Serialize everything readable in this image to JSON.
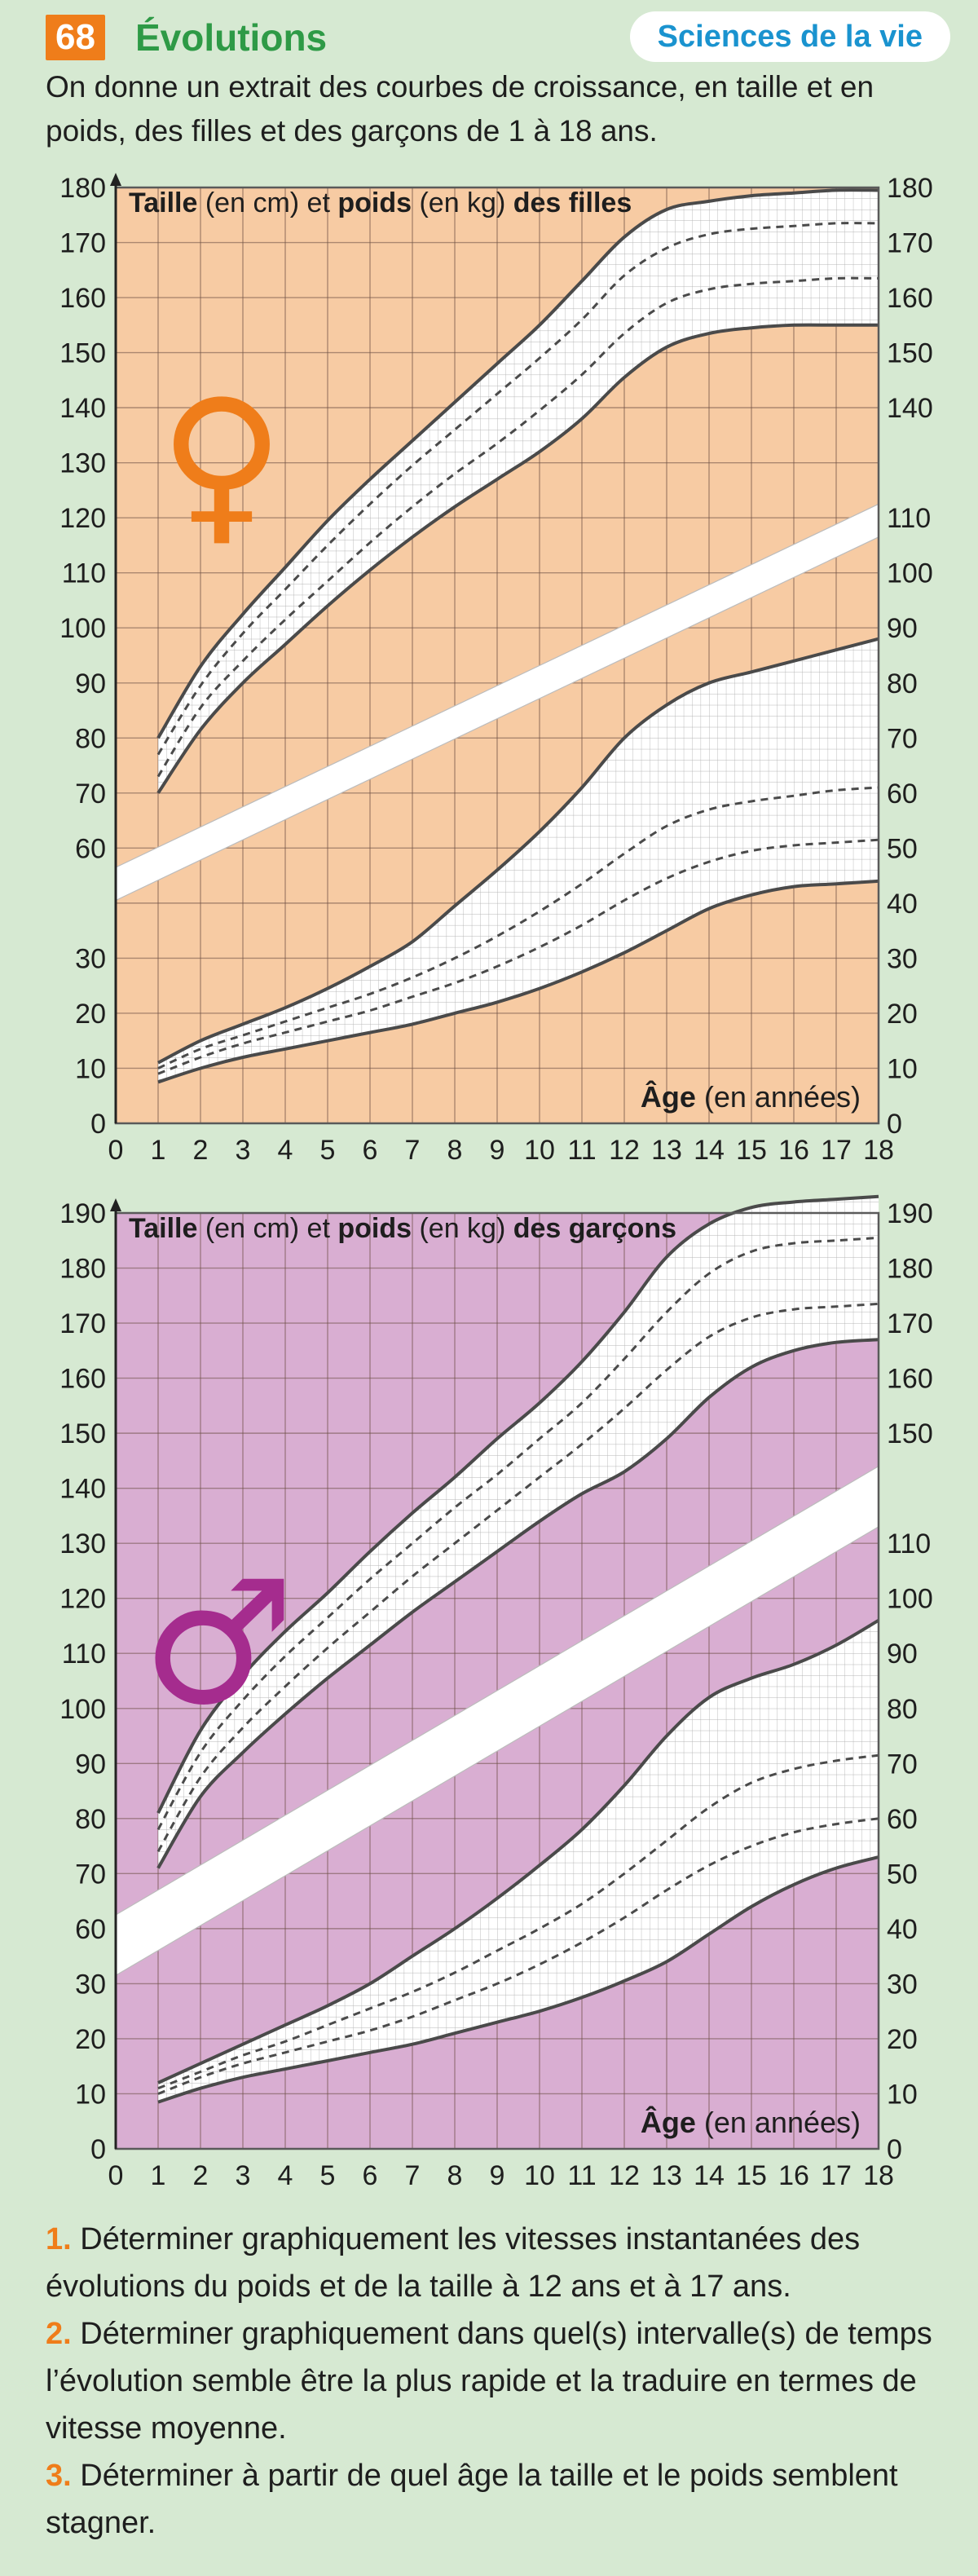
{
  "header": {
    "number": "68",
    "title": "Évolutions",
    "subject": "Sciences de la vie",
    "intro": "On donne un extrait des courbes de croissance, en taille et en poids, des filles et des garçons de 1 à 18 ans."
  },
  "colors": {
    "number_bg": "#ef7d1a",
    "title": "#2e9a46",
    "subject": "#1a93cf",
    "girls_bg": "#f7cba3",
    "boys_bg": "#d9aed2",
    "girls_symbol": "#ef7d1a",
    "boys_symbol": "#a52c8e",
    "page_bg": "#d6e9d2"
  },
  "chart_data": [
    {
      "type": "line",
      "title_parts": [
        "Taille",
        " (en cm) et ",
        "poids",
        " (en kg) ",
        "des filles"
      ],
      "xlabel_parts": [
        "Âge",
        " (en années)"
      ],
      "symbol": "♀",
      "x_ticks": [
        "0",
        "1",
        "2",
        "3",
        "4",
        "5",
        "6",
        "7",
        "8",
        "9",
        "10",
        "11",
        "12",
        "13",
        "14",
        "15",
        "16",
        "17",
        "18"
      ],
      "left_ticks": [
        [
          "0",
          0
        ],
        [
          "10",
          10
        ],
        [
          "20",
          20
        ],
        [
          "30",
          30
        ],
        [
          "60",
          50
        ],
        [
          "70",
          60
        ],
        [
          "80",
          70
        ],
        [
          "90",
          80
        ],
        [
          "100",
          90
        ],
        [
          "110",
          100
        ],
        [
          "120",
          110
        ],
        [
          "130",
          120
        ],
        [
          "140",
          130
        ],
        [
          "150",
          140
        ],
        [
          "160",
          150
        ],
        [
          "170",
          160
        ],
        [
          "180",
          170
        ]
      ],
      "right_ticks": [
        [
          "0",
          0
        ],
        [
          "10",
          10
        ],
        [
          "20",
          20
        ],
        [
          "30",
          30
        ],
        [
          "40",
          40
        ],
        [
          "50",
          50
        ],
        [
          "60",
          60
        ],
        [
          "70",
          70
        ],
        [
          "80",
          80
        ],
        [
          "90",
          90
        ],
        [
          "100",
          100
        ],
        [
          "110",
          110
        ],
        [
          "140",
          130
        ],
        [
          "150",
          140
        ],
        [
          "160",
          150
        ],
        [
          "170",
          160
        ],
        [
          "180",
          170
        ]
      ],
      "xlim": [
        0,
        18
      ],
      "ylim": [
        0,
        170
      ],
      "break_band": {
        "left": [
          [
            0,
            40.5,
            46.5
          ],
          [
            18,
            106.5,
            112.5
          ]
        ]
      },
      "height_series_cm": [
        {
          "style": "solid",
          "x": [
            1,
            2,
            3,
            4,
            5,
            6,
            7,
            8,
            9,
            10,
            11,
            12,
            13,
            14,
            15,
            16,
            17,
            18
          ],
          "y": [
            80,
            93,
            102.5,
            111,
            119.5,
            127,
            134,
            141,
            148,
            155,
            163,
            171,
            176,
            177.5,
            178.5,
            179,
            179.5,
            179.5
          ]
        },
        {
          "style": "dashed",
          "x": [
            1,
            2,
            3,
            4,
            5,
            6,
            7,
            8,
            9,
            10,
            11,
            12,
            13,
            14,
            15,
            16,
            17,
            18
          ],
          "y": [
            77,
            89.5,
            99,
            107,
            115,
            122.5,
            129.5,
            136,
            142.5,
            149,
            156,
            164,
            169,
            171.5,
            172.5,
            173,
            173.5,
            173.5
          ]
        },
        {
          "style": "dashed",
          "x": [
            1,
            2,
            3,
            4,
            5,
            6,
            7,
            8,
            9,
            10,
            11,
            12,
            13,
            14,
            15,
            16,
            17,
            18
          ],
          "y": [
            73,
            85.5,
            94,
            101.5,
            108.5,
            115.5,
            122,
            128,
            133.5,
            139.5,
            146,
            153.5,
            159,
            161.5,
            162.5,
            163,
            163.5,
            163.5
          ]
        },
        {
          "style": "solid",
          "x": [
            1,
            2,
            3,
            4,
            5,
            6,
            7,
            8,
            9,
            10,
            11,
            12,
            13,
            14,
            15,
            16,
            17,
            18
          ],
          "y": [
            70,
            81.5,
            90,
            97,
            104,
            110.5,
            116.5,
            122,
            127,
            132,
            138,
            145.5,
            151,
            153.5,
            154.5,
            155,
            155,
            155
          ]
        }
      ],
      "weight_series_kg": [
        {
          "style": "solid",
          "x": [
            1,
            2,
            3,
            4,
            5,
            6,
            7,
            8,
            9,
            10,
            11,
            12,
            13,
            14,
            15,
            16,
            17,
            18
          ],
          "y": [
            11,
            15,
            18,
            21,
            24.5,
            28.5,
            33,
            39.5,
            46,
            53,
            61,
            70,
            76,
            80,
            82,
            84,
            86,
            88
          ]
        },
        {
          "style": "dashed",
          "x": [
            1,
            2,
            3,
            4,
            5,
            6,
            7,
            8,
            9,
            10,
            11,
            12,
            13,
            14,
            15,
            16,
            17,
            18
          ],
          "y": [
            10,
            13.5,
            16,
            18.5,
            21,
            23.5,
            26.5,
            30,
            34,
            38.5,
            43.5,
            49,
            54,
            57,
            58.5,
            59.5,
            60.5,
            61
          ]
        },
        {
          "style": "dashed",
          "x": [
            1,
            2,
            3,
            4,
            5,
            6,
            7,
            8,
            9,
            10,
            11,
            12,
            13,
            14,
            15,
            16,
            17,
            18
          ],
          "y": [
            9,
            12,
            14.5,
            16.5,
            18.5,
            20.5,
            23,
            25.5,
            28.5,
            32,
            36,
            40.5,
            44.5,
            47.5,
            49.5,
            50.5,
            51,
            51.5
          ]
        },
        {
          "style": "solid",
          "x": [
            1,
            2,
            3,
            4,
            5,
            6,
            7,
            8,
            9,
            10,
            11,
            12,
            13,
            14,
            15,
            16,
            17,
            18
          ],
          "y": [
            7.5,
            10,
            12,
            13.5,
            15,
            16.5,
            18,
            20,
            22,
            24.5,
            27.5,
            31,
            35,
            39,
            41.5,
            43,
            43.5,
            44
          ]
        }
      ]
    },
    {
      "type": "line",
      "title_parts": [
        "Taille",
        " (en cm) et ",
        "poids",
        " (en kg) ",
        "des garçons"
      ],
      "xlabel_parts": [
        "Âge",
        " (en années)"
      ],
      "symbol": "♂",
      "x_ticks": [
        "0",
        "1",
        "2",
        "3",
        "4",
        "5",
        "6",
        "7",
        "8",
        "9",
        "10",
        "11",
        "12",
        "13",
        "14",
        "15",
        "16",
        "17",
        "18"
      ],
      "left_ticks": [
        [
          "0",
          0
        ],
        [
          "10",
          10
        ],
        [
          "20",
          20
        ],
        [
          "30",
          30
        ],
        [
          "60",
          40
        ],
        [
          "70",
          50
        ],
        [
          "80",
          60
        ],
        [
          "90",
          70
        ],
        [
          "100",
          80
        ],
        [
          "110",
          90
        ],
        [
          "120",
          100
        ],
        [
          "130",
          110
        ],
        [
          "140",
          120
        ],
        [
          "150",
          130
        ],
        [
          "160",
          140
        ],
        [
          "170",
          150
        ],
        [
          "180",
          160
        ],
        [
          "190",
          170
        ]
      ],
      "right_ticks": [
        [
          "0",
          0
        ],
        [
          "10",
          10
        ],
        [
          "20",
          20
        ],
        [
          "30",
          30
        ],
        [
          "40",
          40
        ],
        [
          "50",
          50
        ],
        [
          "60",
          60
        ],
        [
          "70",
          70
        ],
        [
          "80",
          80
        ],
        [
          "90",
          90
        ],
        [
          "100",
          100
        ],
        [
          "110",
          110
        ],
        [
          "150",
          130
        ],
        [
          "160",
          140
        ],
        [
          "170",
          150
        ],
        [
          "180",
          160
        ],
        [
          "190",
          170
        ]
      ],
      "xlim": [
        0,
        18
      ],
      "ylim": [
        0,
        170
      ],
      "break_band": {
        "left": [
          [
            0,
            31.5,
            42.5
          ],
          [
            18,
            113,
            124
          ]
        ]
      },
      "height_series_cm": [
        {
          "style": "solid",
          "x": [
            1,
            2,
            3,
            4,
            5,
            6,
            7,
            8,
            9,
            10,
            11,
            12,
            13,
            14,
            15,
            16,
            17,
            18
          ],
          "y": [
            81,
            96,
            106,
            114,
            121,
            128.5,
            135.5,
            142,
            149,
            155.5,
            163,
            172,
            182,
            188,
            191,
            192,
            192.5,
            193
          ]
        },
        {
          "style": "dashed",
          "x": [
            1,
            2,
            3,
            4,
            5,
            6,
            7,
            8,
            9,
            10,
            11,
            12,
            13,
            14,
            15,
            16,
            17,
            18
          ],
          "y": [
            78,
            92,
            101.5,
            109.5,
            116.5,
            123.5,
            130,
            136.5,
            142.5,
            149,
            155.5,
            163.5,
            172,
            179,
            183,
            184.5,
            185,
            185.5
          ]
        },
        {
          "style": "dashed",
          "x": [
            1,
            2,
            3,
            4,
            5,
            6,
            7,
            8,
            9,
            10,
            11,
            12,
            13,
            14,
            15,
            16,
            17,
            18
          ],
          "y": [
            74,
            87.5,
            96.5,
            104,
            111,
            117.5,
            124,
            130,
            136,
            142,
            148,
            154.5,
            161.5,
            167.5,
            171,
            172.5,
            173,
            173.5
          ]
        },
        {
          "style": "solid",
          "x": [
            1,
            2,
            3,
            4,
            5,
            6,
            7,
            8,
            9,
            10,
            11,
            12,
            13,
            14,
            15,
            16,
            17,
            18
          ],
          "y": [
            71,
            84,
            92,
            99,
            105.5,
            111.5,
            117.5,
            123,
            128.5,
            134,
            139,
            143,
            149,
            156.5,
            162,
            165,
            166.5,
            167
          ]
        }
      ],
      "weight_series_kg": [
        {
          "style": "solid",
          "x": [
            1,
            2,
            3,
            4,
            5,
            6,
            7,
            8,
            9,
            10,
            11,
            12,
            13,
            14,
            15,
            16,
            17,
            18
          ],
          "y": [
            12,
            15.5,
            19,
            22.5,
            26,
            30,
            35,
            40,
            45.5,
            51.5,
            58,
            66,
            75,
            82,
            85.5,
            88,
            91.5,
            96
          ]
        },
        {
          "style": "dashed",
          "x": [
            1,
            2,
            3,
            4,
            5,
            6,
            7,
            8,
            9,
            10,
            11,
            12,
            13,
            14,
            15,
            16,
            17,
            18
          ],
          "y": [
            11,
            14,
            17,
            19.5,
            22.5,
            25.5,
            28.5,
            32,
            36,
            40,
            44.5,
            50,
            56,
            62,
            66.5,
            69,
            70.5,
            71.5
          ]
        },
        {
          "style": "dashed",
          "x": [
            1,
            2,
            3,
            4,
            5,
            6,
            7,
            8,
            9,
            10,
            11,
            12,
            13,
            14,
            15,
            16,
            17,
            18
          ],
          "y": [
            10,
            13,
            15.5,
            17.5,
            19.5,
            21.5,
            24,
            27,
            30,
            33.5,
            37.5,
            42,
            47,
            51.5,
            55,
            57.5,
            59,
            60
          ]
        },
        {
          "style": "solid",
          "x": [
            1,
            2,
            3,
            4,
            5,
            6,
            7,
            8,
            9,
            10,
            11,
            12,
            13,
            14,
            15,
            16,
            17,
            18
          ],
          "y": [
            8.5,
            11,
            13,
            14.5,
            16,
            17.5,
            19,
            21,
            23,
            25,
            27.5,
            30.5,
            34,
            39,
            44,
            48,
            51,
            53
          ]
        }
      ]
    }
  ],
  "questions": [
    {
      "number": "1.",
      "text": "Déterminer graphiquement les vitesses instantanées des évolutions du poids et de la taille à 12 ans et à 17 ans."
    },
    {
      "number": "2.",
      "text": "Déterminer graphiquement dans quel(s) intervalle(s) de temps l’évolution semble être la plus rapide et la traduire en termes de vitesse moyenne."
    },
    {
      "number": "3.",
      "text": "Déterminer à partir de quel âge la taille et le poids semblent stagner."
    }
  ]
}
